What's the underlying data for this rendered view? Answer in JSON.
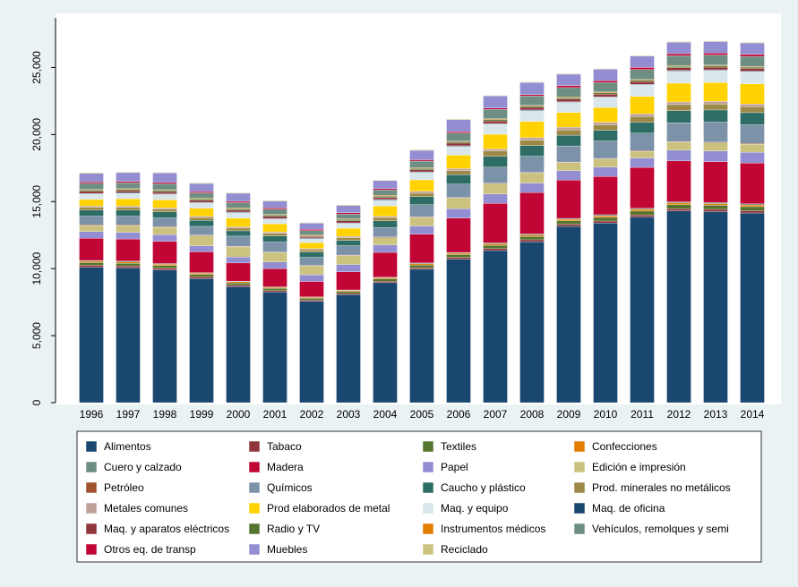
{
  "chart_data": {
    "type": "stacked-bar",
    "categories": [
      "1996",
      "1997",
      "1998",
      "1999",
      "2000",
      "2001",
      "2002",
      "2003",
      "2004",
      "2005",
      "2006",
      "2007",
      "2008",
      "2009",
      "2010",
      "2011",
      "2012",
      "2013",
      "2014"
    ],
    "ylim": [
      0,
      28700
    ],
    "yticks": [
      0,
      {
        "value": 5000,
        "label": "5,000"
      },
      {
        "value": 10000,
        "label": "10,000"
      },
      {
        "value": 15000,
        "label": "15,000"
      },
      {
        "value": 20000,
        "label": "20,000"
      },
      {
        "value": 25000,
        "label": "25,000"
      }
    ],
    "grid": false,
    "series": [
      {
        "name": "Alimentos",
        "color": "#1a476f",
        "values": [
          10100,
          10050,
          9900,
          9250,
          8650,
          8250,
          7550,
          8050,
          8950,
          9950,
          10700,
          11350,
          12000,
          13150,
          13400,
          13850,
          14300,
          14250,
          14150
        ]
      },
      {
        "name": "Tabaco",
        "color": "#90353b",
        "values": [
          150,
          150,
          140,
          130,
          120,
          110,
          100,
          100,
          110,
          120,
          130,
          140,
          150,
          150,
          150,
          160,
          170,
          170,
          170
        ]
      },
      {
        "name": "Textiles",
        "color": "#55752f",
        "values": [
          200,
          200,
          190,
          180,
          170,
          160,
          140,
          150,
          170,
          200,
          220,
          250,
          250,
          260,
          270,
          280,
          300,
          300,
          300
        ]
      },
      {
        "name": "Confecciones",
        "color": "#e37e00",
        "values": [
          100,
          100,
          90,
          90,
          80,
          70,
          60,
          70,
          80,
          90,
          100,
          110,
          110,
          120,
          120,
          130,
          130,
          130,
          130
        ]
      },
      {
        "name": "Cuero y calzado",
        "color": "#6e8e84",
        "values": [
          60,
          60,
          60,
          50,
          50,
          50,
          40,
          40,
          50,
          60,
          60,
          70,
          70,
          70,
          80,
          80,
          80,
          80,
          80
        ]
      },
      {
        "name": "Madera",
        "color": "#c10534",
        "values": [
          1650,
          1650,
          1650,
          1550,
          1350,
          1350,
          1150,
          1350,
          1850,
          2150,
          2550,
          2950,
          3100,
          2850,
          2850,
          3050,
          3050,
          3050,
          3050
        ]
      },
      {
        "name": "Papel",
        "color": "#938dd2",
        "values": [
          500,
          500,
          500,
          450,
          450,
          500,
          500,
          550,
          550,
          600,
          700,
          700,
          700,
          700,
          700,
          700,
          800,
          800,
          800
        ]
      },
      {
        "name": "Edición e impresión",
        "color": "#cac27e",
        "values": [
          450,
          500,
          550,
          750,
          750,
          700,
          650,
          650,
          550,
          650,
          800,
          750,
          750,
          600,
          600,
          500,
          600,
          600,
          600
        ]
      },
      {
        "name": "Petróleo",
        "color": "#a0522d",
        "values": [
          50,
          50,
          50,
          50,
          50,
          50,
          50,
          50,
          50,
          50,
          50,
          50,
          50,
          50,
          50,
          50,
          50,
          50,
          50
        ]
      },
      {
        "name": "Químicos",
        "color": "#7b92a8",
        "values": [
          650,
          650,
          650,
          650,
          750,
          750,
          600,
          700,
          700,
          900,
          1000,
          1200,
          1200,
          1200,
          1300,
          1300,
          1400,
          1500,
          1400
        ]
      },
      {
        "name": "Caucho y plástico",
        "color": "#2d6d66",
        "values": [
          450,
          450,
          450,
          450,
          400,
          450,
          400,
          400,
          500,
          600,
          700,
          800,
          800,
          800,
          800,
          800,
          900,
          900,
          900
        ]
      },
      {
        "name": "Prod. minerales no metálicos",
        "color": "#9c8847",
        "values": [
          200,
          200,
          200,
          200,
          200,
          200,
          150,
          200,
          250,
          250,
          300,
          400,
          400,
          400,
          400,
          450,
          450,
          450,
          450
        ]
      },
      {
        "name": "Metales comunes",
        "color": "#bfa19c",
        "values": [
          100,
          100,
          100,
          100,
          100,
          100,
          100,
          100,
          100,
          150,
          150,
          150,
          200,
          200,
          200,
          200,
          200,
          200,
          200
        ]
      },
      {
        "name": "Prod elaborados de metal",
        "color": "#ffd200",
        "values": [
          500,
          550,
          600,
          600,
          650,
          600,
          450,
          600,
          750,
          850,
          1000,
          1100,
          1200,
          1100,
          1100,
          1300,
          1400,
          1400,
          1500
        ]
      },
      {
        "name": "Maq. y equipo",
        "color": "#d9e6eb",
        "values": [
          400,
          400,
          400,
          400,
          400,
          350,
          300,
          350,
          450,
          550,
          650,
          750,
          800,
          750,
          750,
          850,
          900,
          900,
          900
        ]
      },
      {
        "name": "Maq. de oficina",
        "color": "#1a476f",
        "values": [
          50,
          50,
          50,
          50,
          50,
          50,
          50,
          50,
          50,
          50,
          50,
          50,
          50,
          50,
          50,
          50,
          50,
          50,
          50
        ]
      },
      {
        "name": "Maq. y aparatos eléctricos",
        "color": "#90353b",
        "values": [
          150,
          150,
          150,
          150,
          150,
          150,
          100,
          150,
          150,
          150,
          200,
          200,
          200,
          200,
          200,
          200,
          200,
          200,
          200
        ]
      },
      {
        "name": "Radio y TV",
        "color": "#55752f",
        "values": [
          100,
          100,
          100,
          100,
          100,
          100,
          50,
          100,
          100,
          100,
          100,
          100,
          100,
          100,
          100,
          100,
          100,
          100,
          100
        ]
      },
      {
        "name": "Instrumentos médicos",
        "color": "#e37e00",
        "values": [
          50,
          50,
          50,
          50,
          50,
          50,
          50,
          50,
          50,
          50,
          50,
          50,
          50,
          50,
          50,
          50,
          50,
          50,
          50
        ]
      },
      {
        "name": "Vehículos, remolques y semi",
        "color": "#6e8e84",
        "values": [
          450,
          450,
          450,
          400,
          400,
          400,
          350,
          350,
          400,
          500,
          600,
          700,
          700,
          700,
          700,
          750,
          750,
          750,
          750
        ]
      },
      {
        "name": "Otros eq. de transp",
        "color": "#c10534",
        "values": [
          100,
          100,
          100,
          100,
          100,
          100,
          100,
          100,
          100,
          100,
          100,
          100,
          100,
          150,
          150,
          150,
          150,
          150,
          150
        ]
      },
      {
        "name": "Muebles",
        "color": "#938dd2",
        "values": [
          650,
          650,
          700,
          600,
          600,
          500,
          450,
          550,
          600,
          700,
          900,
          900,
          900,
          850,
          850,
          850,
          850,
          850,
          850
        ]
      },
      {
        "name": "Reciclado",
        "color": "#cac27e",
        "values": [
          50,
          50,
          50,
          50,
          50,
          50,
          50,
          50,
          50,
          50,
          50,
          50,
          50,
          50,
          50,
          50,
          50,
          50,
          50
        ]
      }
    ]
  }
}
